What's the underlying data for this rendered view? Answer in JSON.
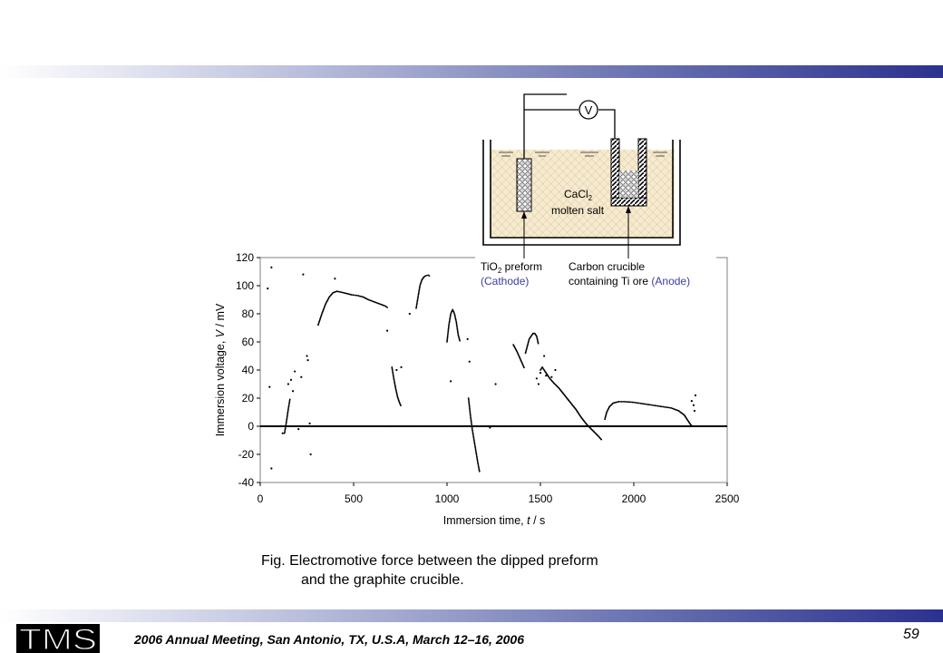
{
  "caption": {
    "line1": "Fig.  Electromotive force between the dipped preform",
    "line2": "and the graphite crucible."
  },
  "footer": {
    "logo_text": "TMS",
    "meeting": "2006 Annual Meeting, San Antonio, TX, U.S.A, March 12–16, 2006",
    "page_number": "59"
  },
  "diagram": {
    "voltmeter": "V",
    "salt_line1": "CaCl",
    "salt_sub": "2",
    "salt_line2": "molten salt",
    "cathode_pre": "TiO",
    "cathode_sub": "2",
    "cathode_post": " preform",
    "cathode_role": "(Cathode)",
    "anode_line1": "Carbon crucible",
    "anode_line2": "containing Ti ore ",
    "anode_role": "(Anode)",
    "role_color": "#3a3f9a"
  },
  "chart_data": {
    "type": "scatter",
    "ylabel_pre": "Immersion voltage, ",
    "ylabel_var": "V",
    "ylabel_post": " / mV",
    "xlabel_pre": "Immersion time, ",
    "xlabel_var": "t",
    "xlabel_post": " / s",
    "xlim": [
      0,
      2500
    ],
    "ylim": [
      -40,
      120
    ],
    "xticks": [
      0,
      500,
      1000,
      1500,
      2000,
      2500
    ],
    "yticks": [
      -40,
      -20,
      0,
      20,
      40,
      60,
      80,
      100,
      120
    ],
    "zero_line": true,
    "grid": false,
    "series": [
      {
        "segments": [
          [
            [
              310,
              72
            ],
            [
              330,
              80
            ],
            [
              350,
              87
            ],
            [
              370,
              92
            ],
            [
              390,
              95
            ],
            [
              410,
              96
            ],
            [
              430,
              95.5
            ],
            [
              460,
              94.5
            ],
            [
              490,
              93.5
            ],
            [
              520,
              93
            ],
            [
              550,
              92
            ],
            [
              580,
              90
            ],
            [
              610,
              88.5
            ],
            [
              640,
              87
            ],
            [
              670,
              85.5
            ],
            [
              685,
              84
            ]
          ],
          [
            [
              835,
              84
            ],
            [
              845,
              92
            ],
            [
              855,
              100
            ],
            [
              865,
              104
            ],
            [
              875,
              106
            ],
            [
              885,
              107
            ],
            [
              900,
              107.5
            ],
            [
              910,
              106.5
            ]
          ],
          [
            [
              1000,
              60
            ],
            [
              1010,
              72
            ],
            [
              1020,
              80
            ],
            [
              1030,
              83
            ],
            [
              1040,
              80
            ],
            [
              1050,
              74
            ],
            [
              1060,
              65
            ],
            [
              1070,
              60
            ]
          ],
          [
            [
              1355,
              58
            ],
            [
              1375,
              53
            ],
            [
              1395,
              47
            ],
            [
              1415,
              41
            ]
          ],
          [
            [
              1420,
              52
            ],
            [
              1430,
              57
            ],
            [
              1440,
              62
            ],
            [
              1450,
              64
            ],
            [
              1460,
              66
            ],
            [
              1470,
              66
            ],
            [
              1480,
              64
            ],
            [
              1490,
              58
            ]
          ],
          [
            [
              1500,
              40
            ],
            [
              1510,
              42
            ],
            [
              1520,
              40
            ],
            [
              1535,
              37
            ],
            [
              1550,
              34
            ],
            [
              1570,
              31
            ],
            [
              1600,
              27
            ],
            [
              1630,
              22
            ],
            [
              1660,
              17
            ],
            [
              1690,
              12
            ],
            [
              1720,
              6
            ],
            [
              1750,
              1
            ],
            [
              1780,
              -3
            ],
            [
              1810,
              -7
            ],
            [
              1830,
              -10
            ]
          ],
          [
            [
              1845,
              5
            ],
            [
              1855,
              10
            ],
            [
              1870,
              14
            ],
            [
              1890,
              16.5
            ],
            [
              1920,
              17.5
            ],
            [
              1950,
              17.5
            ],
            [
              2000,
              17
            ],
            [
              2050,
              16
            ],
            [
              2100,
              15
            ],
            [
              2150,
              14
            ],
            [
              2200,
              13
            ],
            [
              2240,
              11
            ],
            [
              2270,
              8
            ],
            [
              2290,
              4
            ],
            [
              2305,
              1
            ],
            [
              2315,
              0
            ]
          ],
          [
            [
              705,
              42
            ],
            [
              715,
              34
            ],
            [
              725,
              27
            ],
            [
              735,
              21
            ],
            [
              745,
              17
            ],
            [
              755,
              14
            ]
          ],
          [
            [
              1115,
              20
            ],
            [
              1125,
              8
            ],
            [
              1135,
              -2
            ],
            [
              1145,
              -10
            ],
            [
              1155,
              -18
            ],
            [
              1165,
              -26
            ],
            [
              1175,
              -33
            ]
          ],
          [
            [
              130,
              -5
            ],
            [
              140,
              3
            ],
            [
              150,
              12
            ],
            [
              160,
              20
            ]
          ]
        ],
        "points": [
          [
            40,
            98
          ],
          [
            60,
            113
          ],
          [
            50,
            28
          ],
          [
            60,
            -30
          ],
          [
            80,
            0
          ],
          [
            100,
            0
          ],
          [
            120,
            -5
          ],
          [
            150,
            30
          ],
          [
            165,
            33
          ],
          [
            175,
            25
          ],
          [
            185,
            39
          ],
          [
            205,
            -2
          ],
          [
            230,
            108
          ],
          [
            220,
            35
          ],
          [
            250,
            50
          ],
          [
            255,
            47
          ],
          [
            265,
            2
          ],
          [
            270,
            -20
          ],
          [
            280,
            0
          ],
          [
            300,
            0
          ],
          [
            400,
            105
          ],
          [
            680,
            68
          ],
          [
            690,
            0
          ],
          [
            700,
            0
          ],
          [
            730,
            40
          ],
          [
            755,
            42
          ],
          [
            780,
            0
          ],
          [
            800,
            80
          ],
          [
            820,
            0
          ],
          [
            900,
            0
          ],
          [
            940,
            0
          ],
          [
            980,
            0
          ],
          [
            1000,
            0
          ],
          [
            1020,
            32
          ],
          [
            1050,
            0
          ],
          [
            1110,
            62
          ],
          [
            1120,
            46
          ],
          [
            1160,
            0
          ],
          [
            1210,
            0
          ],
          [
            1230,
            -1
          ],
          [
            1250,
            0
          ],
          [
            1260,
            30
          ],
          [
            1280,
            0
          ],
          [
            1300,
            0
          ],
          [
            1310,
            0
          ],
          [
            1340,
            0
          ],
          [
            1480,
            34
          ],
          [
            1490,
            30
          ],
          [
            1500,
            38
          ],
          [
            1520,
            50
          ],
          [
            1530,
            36
          ],
          [
            1560,
            35
          ],
          [
            1580,
            40
          ],
          [
            2310,
            18
          ],
          [
            2320,
            15
          ],
          [
            2330,
            22
          ],
          [
            2325,
            11
          ]
        ]
      }
    ]
  }
}
